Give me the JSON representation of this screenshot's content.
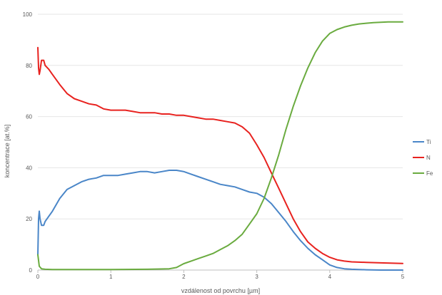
{
  "chart_data": {
    "type": "line",
    "xlabel": "vzdálenost od povrchu [µm]",
    "ylabel": "koncentrace [at.%]",
    "xlim": [
      0,
      5
    ],
    "ylim": [
      0,
      100
    ],
    "x_ticks": [
      "0",
      "1",
      "2",
      "3",
      "4",
      "5"
    ],
    "y_ticks": [
      "0",
      "20",
      "40",
      "60",
      "80",
      "100"
    ],
    "grid": "horizontal",
    "legend_position": "right",
    "series": [
      {
        "name": "Ti",
        "color": "#4a86c8",
        "x": [
          0,
          0.01,
          0.02,
          0.03,
          0.05,
          0.08,
          0.1,
          0.15,
          0.2,
          0.3,
          0.4,
          0.5,
          0.6,
          0.7,
          0.8,
          0.9,
          1.0,
          1.1,
          1.2,
          1.3,
          1.4,
          1.5,
          1.6,
          1.7,
          1.8,
          1.9,
          2.0,
          2.1,
          2.2,
          2.3,
          2.4,
          2.5,
          2.6,
          2.7,
          2.8,
          2.9,
          3.0,
          3.1,
          3.2,
          3.3,
          3.4,
          3.5,
          3.6,
          3.7,
          3.8,
          3.9,
          4.0,
          4.1,
          4.2,
          4.3,
          4.5,
          4.7,
          5.0
        ],
        "y": [
          6,
          20,
          23,
          20,
          17.5,
          17.5,
          19,
          21,
          23,
          28,
          31.5,
          33,
          34.5,
          35.5,
          36,
          37,
          37,
          37,
          37.5,
          38,
          38.5,
          38.5,
          38,
          38.5,
          39,
          39,
          38.5,
          37.5,
          36.5,
          35.5,
          34.5,
          33.5,
          33,
          32.5,
          31.5,
          30.5,
          30,
          28.5,
          26,
          22.5,
          19,
          15,
          11.5,
          8.5,
          6,
          4,
          2,
          1,
          0.5,
          0.3,
          0.1,
          0,
          0
        ]
      },
      {
        "name": "N",
        "color": "#e8221f",
        "x": [
          0,
          0.01,
          0.02,
          0.03,
          0.05,
          0.08,
          0.1,
          0.15,
          0.2,
          0.3,
          0.4,
          0.5,
          0.6,
          0.7,
          0.8,
          0.9,
          1.0,
          1.1,
          1.2,
          1.3,
          1.4,
          1.5,
          1.6,
          1.7,
          1.8,
          1.9,
          2.0,
          2.1,
          2.2,
          2.3,
          2.4,
          2.5,
          2.6,
          2.7,
          2.8,
          2.9,
          3.0,
          3.1,
          3.2,
          3.3,
          3.4,
          3.5,
          3.6,
          3.7,
          3.8,
          3.9,
          4.0,
          4.1,
          4.2,
          4.3,
          4.5,
          4.7,
          5.0
        ],
        "y": [
          87,
          79,
          76.5,
          78,
          82,
          82,
          80,
          78.5,
          76.5,
          72.5,
          69,
          67,
          66,
          65,
          64.5,
          63,
          62.5,
          62.5,
          62.5,
          62,
          61.5,
          61.5,
          61.5,
          61,
          61,
          60.5,
          60.5,
          60,
          59.5,
          59,
          59,
          58.5,
          58,
          57.5,
          56,
          53.5,
          49,
          44,
          38,
          32,
          26,
          20,
          15,
          11,
          8.5,
          6.5,
          5,
          4,
          3.5,
          3.2,
          3,
          2.8,
          2.6
        ]
      },
      {
        "name": "Fe",
        "color": "#6aab3f",
        "x": [
          0,
          0.02,
          0.05,
          0.1,
          0.2,
          0.5,
          1.0,
          1.5,
          1.8,
          1.9,
          2.0,
          2.1,
          2.2,
          2.3,
          2.4,
          2.5,
          2.6,
          2.7,
          2.8,
          2.9,
          3.0,
          3.1,
          3.2,
          3.3,
          3.4,
          3.5,
          3.6,
          3.7,
          3.8,
          3.9,
          4.0,
          4.1,
          4.2,
          4.3,
          4.4,
          4.5,
          4.6,
          4.8,
          5.0
        ],
        "y": [
          6,
          1.5,
          0.5,
          0.3,
          0.2,
          0.2,
          0.2,
          0.3,
          0.5,
          1,
          2.5,
          3.5,
          4.5,
          5.5,
          6.5,
          8,
          9.5,
          11.5,
          14,
          18,
          22,
          28,
          36,
          45,
          55,
          64,
          72,
          79,
          85,
          89.5,
          92.5,
          94,
          95,
          95.7,
          96.2,
          96.5,
          96.7,
          97,
          97
        ]
      }
    ]
  }
}
